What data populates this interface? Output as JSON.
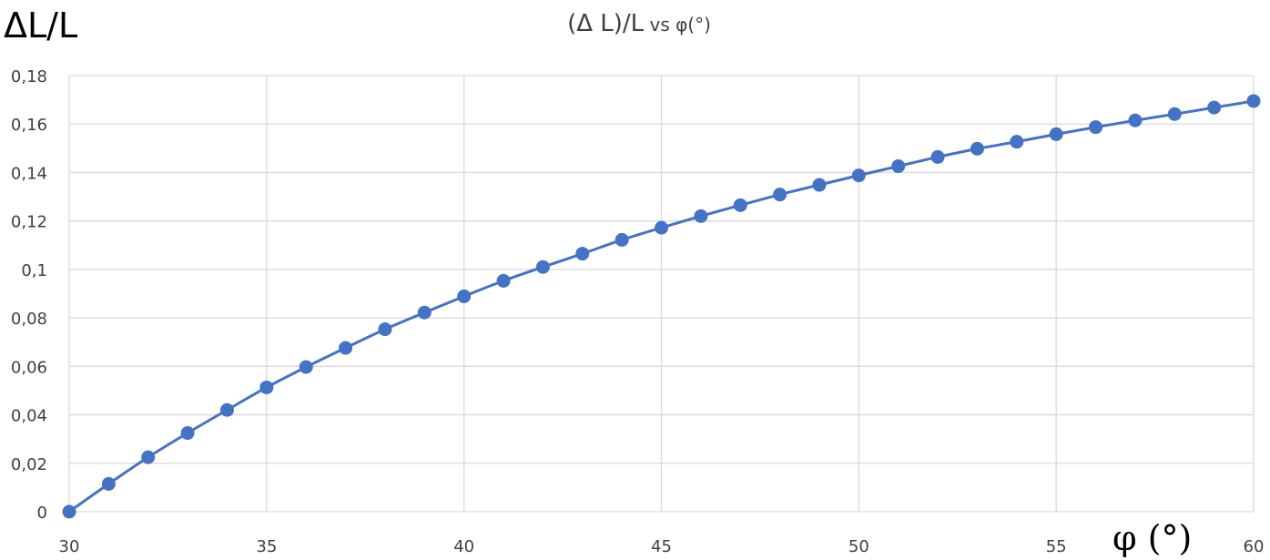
{
  "chart_data": {
    "type": "line",
    "title": {
      "main": "(Δ L)/L",
      "suffix_small": " vs φ(",
      "suffix_unit": "°",
      "suffix_close": ")"
    },
    "ylabel": "ΔL/L",
    "xlabel": "φ (°)",
    "x": [
      30,
      31,
      32,
      33,
      34,
      35,
      36,
      37,
      38,
      39,
      40,
      41,
      42,
      43,
      44,
      45,
      46,
      47,
      48,
      49,
      50,
      51,
      52,
      53,
      54,
      55,
      56,
      57,
      58,
      59,
      60
    ],
    "series": [
      {
        "color": "#4472c4",
        "values": [
          0,
          0.0115,
          0.0225,
          0.0325,
          0.042,
          0.0513,
          0.0597,
          0.0676,
          0.0753,
          0.0822,
          0.0889,
          0.0953,
          0.101,
          0.1065,
          0.1122,
          0.1172,
          0.122,
          0.1265,
          0.1309,
          0.1349,
          0.1388,
          0.1426,
          0.1464,
          0.1498,
          0.1527,
          0.1558,
          0.1587,
          0.1615,
          0.1641,
          0.1668,
          0.1695
        ]
      }
    ],
    "xlim": [
      30,
      60
    ],
    "ylim": [
      0,
      0.18
    ],
    "xticks": [
      30,
      35,
      40,
      45,
      50,
      55,
      60
    ],
    "xtick_labels": [
      "30",
      "35",
      "40",
      "45",
      "50",
      "55",
      "60"
    ],
    "yticks": [
      0,
      0.02,
      0.04,
      0.06,
      0.08,
      0.1,
      0.12,
      0.14,
      0.16,
      0.18
    ],
    "ytick_labels": [
      "0",
      "0,02",
      "0,04",
      "0,06",
      "0,08",
      "0,1",
      "0,12",
      "0,14",
      "0,16",
      "0,18"
    ],
    "grid": true,
    "legend": "none",
    "markers": "circle"
  }
}
